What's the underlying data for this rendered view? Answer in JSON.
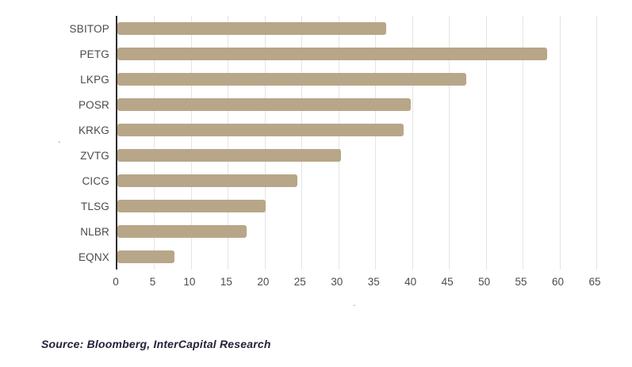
{
  "chart_data": {
    "type": "bar",
    "orientation": "horizontal",
    "title": "",
    "xlabel": ".",
    "ylabel": ".",
    "categories": [
      "SBITOP",
      "PETG",
      "LKPG",
      "POSR",
      "KRKG",
      "ZVTG",
      "CICG",
      "TLSG",
      "NLBR",
      "EQNX"
    ],
    "values": [
      36.5,
      58.3,
      47.4,
      39.8,
      38.9,
      30.4,
      24.4,
      20.1,
      17.5,
      7.8
    ],
    "xlim": [
      0,
      65
    ],
    "xticks": [
      0,
      5,
      10,
      15,
      20,
      25,
      30,
      35,
      40,
      45,
      50,
      55,
      60,
      65
    ],
    "grid": true,
    "legend": "none",
    "bar_color": "#b8a688"
  },
  "colors": {
    "bar": "#b8a688",
    "gridline": "#e4e4e4",
    "axis_line": "#2e2e2e",
    "label_text": "#4b4b4b",
    "source_text": "#23233a",
    "background": "#ffffff"
  },
  "source": {
    "text": "Source: Bloomberg, InterCapital Research"
  }
}
